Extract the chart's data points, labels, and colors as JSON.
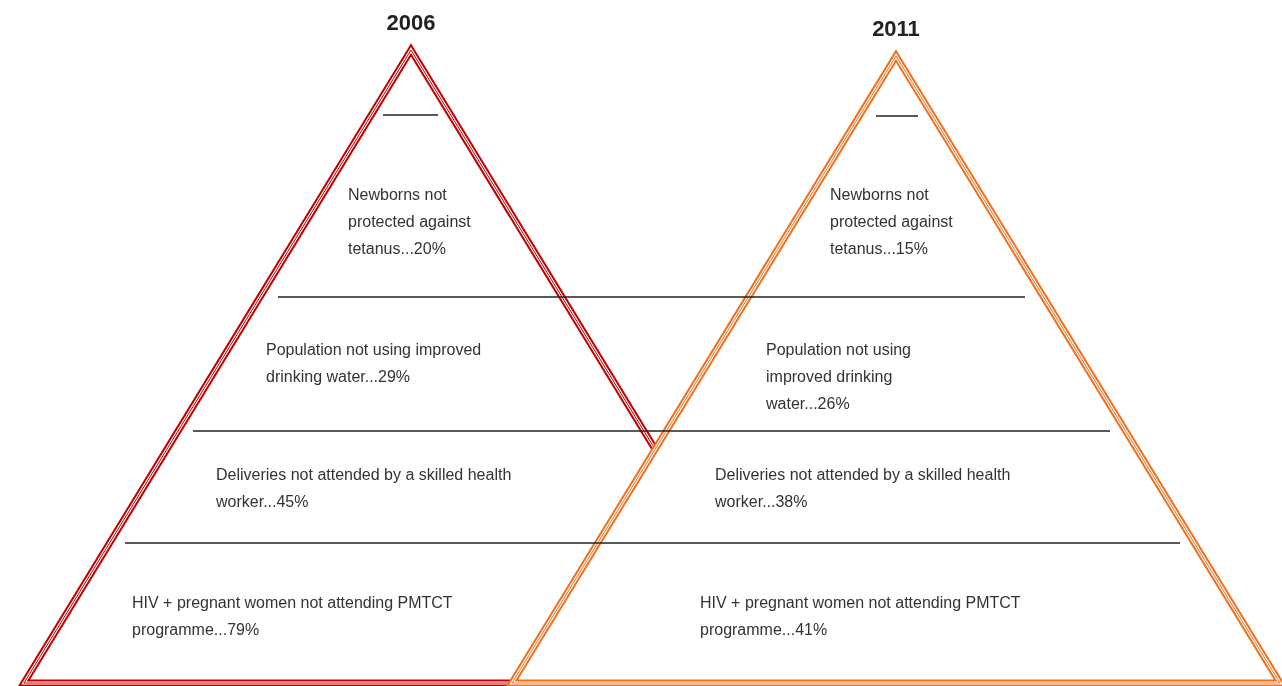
{
  "chart_data": [
    {
      "type": "other",
      "title": "2006",
      "color": "#c00000",
      "categories": [
        "Newborns not protected against tetanus...",
        "Population not using improved drinking water...",
        "Deliveries not attended by a skilled health worker...",
        "HIV + pregnant women not attending PMTCT programme..."
      ],
      "values": [
        20,
        29,
        45,
        79
      ],
      "value_labels": [
        "20%",
        "29%",
        "45%",
        "79%"
      ]
    },
    {
      "type": "other",
      "title": "2011",
      "color": "#f07020",
      "categories": [
        "Newborns not protected against tetanus...",
        "Population not using improved drinking water...",
        "Deliveries not attended by a skilled health worker...",
        "HIV + pregnant women not attending PMTCT programme..."
      ],
      "values": [
        15,
        26,
        38,
        41
      ],
      "value_labels": [
        "15%",
        "26%",
        "38%",
        "41%"
      ]
    }
  ]
}
